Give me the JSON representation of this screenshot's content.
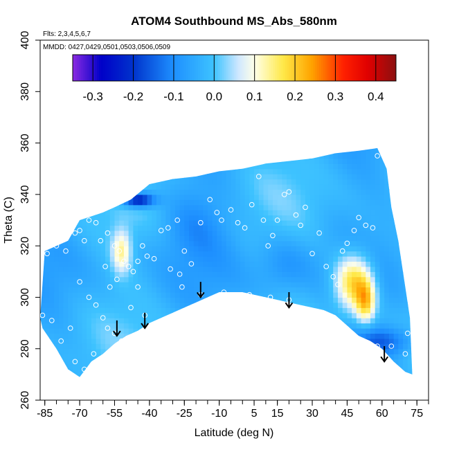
{
  "chart_data": {
    "type": "heatmap",
    "title": "ATOM4 Southbound MS_Abs_580nm",
    "annotations": [
      "Flts: 2,3,4,5,6,7",
      "MMDD: 0427,0429,0501,0503,0506,0509"
    ],
    "xlabel": "Latitude (deg N)",
    "ylabel": "Theta (C)",
    "xlim": [
      -87,
      80
    ],
    "ylim": [
      260,
      400
    ],
    "x_ticks": [
      -85,
      -70,
      -55,
      -40,
      -25,
      -10,
      5,
      15,
      30,
      45,
      60,
      75
    ],
    "y_ticks": [
      260,
      280,
      300,
      320,
      340,
      360,
      380,
      400
    ],
    "colorbar": {
      "min": -0.35,
      "max": 0.45,
      "ticks": [
        -0.3,
        -0.2,
        -0.1,
        0.0,
        0.1,
        0.2,
        0.3,
        0.4
      ],
      "tick_labels": [
        "-0.3",
        "-0.2",
        "-0.1",
        "0.0",
        "0.1",
        "0.2",
        "0.3",
        "0.4"
      ],
      "stops": [
        {
          "value": -0.35,
          "color": "#8b2be2"
        },
        {
          "value": -0.28,
          "color": "#0000c8"
        },
        {
          "value": -0.2,
          "color": "#0033cc"
        },
        {
          "value": -0.1,
          "color": "#1e90ff"
        },
        {
          "value": 0.0,
          "color": "#3ec3ff"
        },
        {
          "value": 0.06,
          "color": "#cfe8ff"
        },
        {
          "value": 0.1,
          "color": "#ffffe8"
        },
        {
          "value": 0.17,
          "color": "#ffe94a"
        },
        {
          "value": 0.24,
          "color": "#ffa500"
        },
        {
          "value": 0.32,
          "color": "#ff2000"
        },
        {
          "value": 0.38,
          "color": "#e00000"
        },
        {
          "value": 0.45,
          "color": "#8b1010"
        }
      ]
    },
    "domain_outline": [
      [
        -87,
        292
      ],
      [
        -85,
        318
      ],
      [
        -75,
        322
      ],
      [
        -70,
        330
      ],
      [
        -60,
        333
      ],
      [
        -55,
        335
      ],
      [
        -48,
        338
      ],
      [
        -40,
        344
      ],
      [
        -30,
        346
      ],
      [
        -20,
        347
      ],
      [
        -10,
        349
      ],
      [
        0,
        350
      ],
      [
        10,
        352
      ],
      [
        20,
        353
      ],
      [
        30,
        354
      ],
      [
        40,
        356
      ],
      [
        50,
        357
      ],
      [
        58,
        358
      ],
      [
        62,
        350
      ],
      [
        64,
        335
      ],
      [
        67,
        322
      ],
      [
        70,
        304
      ],
      [
        72,
        292
      ],
      [
        73,
        270
      ],
      [
        70,
        271
      ],
      [
        65,
        275
      ],
      [
        60,
        280
      ],
      [
        55,
        283
      ],
      [
        50,
        285
      ],
      [
        45,
        289
      ],
      [
        40,
        293
      ],
      [
        35,
        295
      ],
      [
        30,
        296
      ],
      [
        25,
        297
      ],
      [
        20,
        298
      ],
      [
        15,
        299
      ],
      [
        10,
        300
      ],
      [
        5,
        301
      ],
      [
        0,
        302
      ],
      [
        -5,
        302
      ],
      [
        -10,
        302
      ],
      [
        -15,
        300
      ],
      [
        -20,
        298
      ],
      [
        -25,
        296
      ],
      [
        -30,
        294
      ],
      [
        -35,
        292
      ],
      [
        -40,
        290
      ],
      [
        -45,
        287
      ],
      [
        -50,
        285
      ],
      [
        -55,
        282
      ],
      [
        -60,
        278
      ],
      [
        -65,
        275
      ],
      [
        -70,
        269
      ],
      [
        -75,
        272
      ],
      [
        -80,
        280
      ],
      [
        -86,
        288
      ]
    ],
    "anomalies": [
      {
        "lat": -52,
        "theta": 318,
        "value": 0.15,
        "sx": 3,
        "sy": 6
      },
      {
        "lat": 48,
        "theta": 306,
        "value": 0.25,
        "sx": 6,
        "sy": 8
      },
      {
        "lat": 53,
        "theta": 298,
        "value": 0.18,
        "sx": 3,
        "sy": 6
      },
      {
        "lat": -45,
        "theta": 338,
        "value": -0.25,
        "sx": 5,
        "sy": 2
      },
      {
        "lat": 60,
        "theta": 283,
        "value": -0.12,
        "sx": 10,
        "sy": 4
      },
      {
        "lat": 18,
        "theta": 312,
        "value": -0.06,
        "sx": 8,
        "sy": 8
      },
      {
        "lat": -20,
        "theta": 330,
        "value": -0.05,
        "sx": 10,
        "sy": 10
      }
    ],
    "observation_points": [
      [
        -84,
        317
      ],
      [
        -80,
        320
      ],
      [
        -76,
        318
      ],
      [
        -72,
        325
      ],
      [
        -70,
        326
      ],
      [
        -68,
        322
      ],
      [
        -66,
        330
      ],
      [
        -63,
        329
      ],
      [
        -61,
        322
      ],
      [
        -58,
        325
      ],
      [
        -55,
        320
      ],
      [
        -53,
        318
      ],
      [
        -51,
        314
      ],
      [
        -49,
        312
      ],
      [
        -47,
        310
      ],
      [
        -45,
        314
      ],
      [
        -43,
        320
      ],
      [
        -41,
        316
      ],
      [
        -38,
        315
      ],
      [
        -35,
        326
      ],
      [
        -32,
        327
      ],
      [
        -28,
        330
      ],
      [
        -25,
        318
      ],
      [
        -22,
        313
      ],
      [
        -18,
        329
      ],
      [
        -14,
        338
      ],
      [
        -11,
        333
      ],
      [
        -9,
        330
      ],
      [
        -5,
        334
      ],
      [
        -2,
        329
      ],
      [
        1,
        327
      ],
      [
        4,
        336
      ],
      [
        7,
        347
      ],
      [
        9,
        330
      ],
      [
        11,
        320
      ],
      [
        13,
        324
      ],
      [
        15,
        330
      ],
      [
        18,
        340
      ],
      [
        20,
        341
      ],
      [
        23,
        332
      ],
      [
        25,
        328
      ],
      [
        27,
        335
      ],
      [
        30,
        317
      ],
      [
        33,
        325
      ],
      [
        36,
        312
      ],
      [
        39,
        308
      ],
      [
        41,
        305
      ],
      [
        43,
        318
      ],
      [
        45,
        321
      ],
      [
        48,
        326
      ],
      [
        50,
        331
      ],
      [
        53,
        328
      ],
      [
        56,
        327
      ],
      [
        58,
        355
      ],
      [
        -70,
        306
      ],
      [
        -66,
        300
      ],
      [
        -63,
        297
      ],
      [
        -60,
        292
      ],
      [
        -58,
        288
      ],
      [
        -55,
        286
      ],
      [
        -52,
        283
      ],
      [
        -50,
        282
      ],
      [
        -74,
        288
      ],
      [
        -78,
        283
      ],
      [
        -82,
        291
      ],
      [
        -86,
        293
      ],
      [
        -72,
        275
      ],
      [
        -68,
        272
      ],
      [
        -64,
        278
      ],
      [
        -26,
        304
      ],
      [
        -18,
        301
      ],
      [
        -8,
        302
      ],
      [
        3,
        301
      ],
      [
        12,
        300
      ],
      [
        20,
        299
      ],
      [
        31,
        292
      ],
      [
        36,
        289
      ],
      [
        42,
        285
      ],
      [
        50,
        283
      ],
      [
        58,
        281
      ],
      [
        64,
        281
      ],
      [
        70,
        278
      ],
      [
        71,
        286
      ],
      [
        -59,
        312
      ],
      [
        -57,
        304
      ],
      [
        -54,
        307
      ],
      [
        -31,
        311
      ],
      [
        -27,
        309
      ],
      [
        -45,
        304
      ],
      [
        -48,
        296
      ],
      [
        -42,
        293
      ],
      [
        -36,
        290
      ],
      [
        -40,
        285
      ]
    ],
    "arrows": [
      {
        "lat": -54,
        "theta": 288
      },
      {
        "lat": -42,
        "theta": 291
      },
      {
        "lat": -18,
        "theta": 303
      },
      {
        "lat": 20,
        "theta": 299
      },
      {
        "lat": 61,
        "theta": 278
      }
    ]
  }
}
